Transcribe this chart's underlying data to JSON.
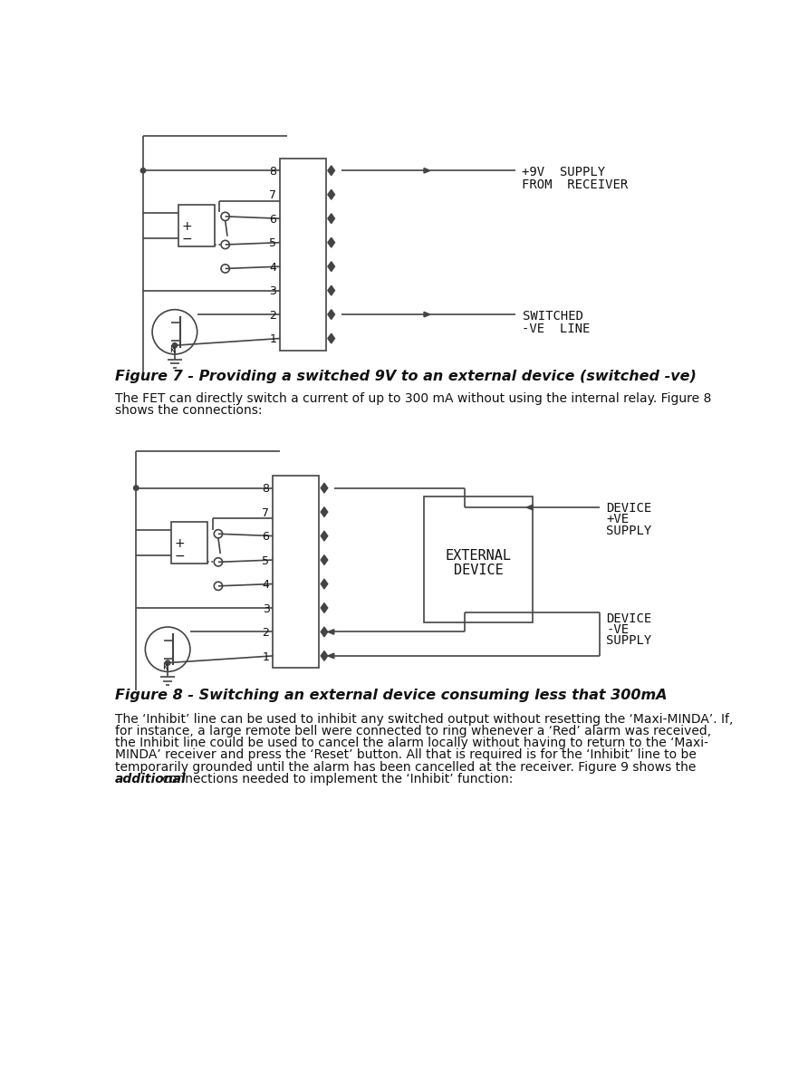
{
  "fig7_caption": "Figure 7 - Providing a switched 9V to an external device (switched -ve)",
  "fig8_caption": "Figure 8 - Switching an external device consuming less that 300mA",
  "para1_line1": "The FET can directly switch a current of up to 300 mA without using the internal relay. Figure 8",
  "para1_line2": "shows the connections:",
  "para2_line1": "The ‘Inhibit’ line can be used to inhibit any switched output without resetting the ‘Maxi-MINDA’. If,",
  "para2_line2": "for instance, a large remote bell were connected to ring whenever a ‘Red’ alarm was received,",
  "para2_line3": "the Inhibit line could be used to cancel the alarm locally without having to return to the ‘Maxi-",
  "para2_line4": "MINDA’ receiver and press the ‘Reset’ button. All that is required is for the ‘Inhibit’ line to be",
  "para2_line5": "temporarily grounded until the alarm has been cancelled at the receiver. Figure 9 shows the",
  "para2_bold": "additional",
  "para2_end": " connections needed to implement the ‘Inhibit’ function:",
  "lc": "#444444",
  "tc": "#111111"
}
